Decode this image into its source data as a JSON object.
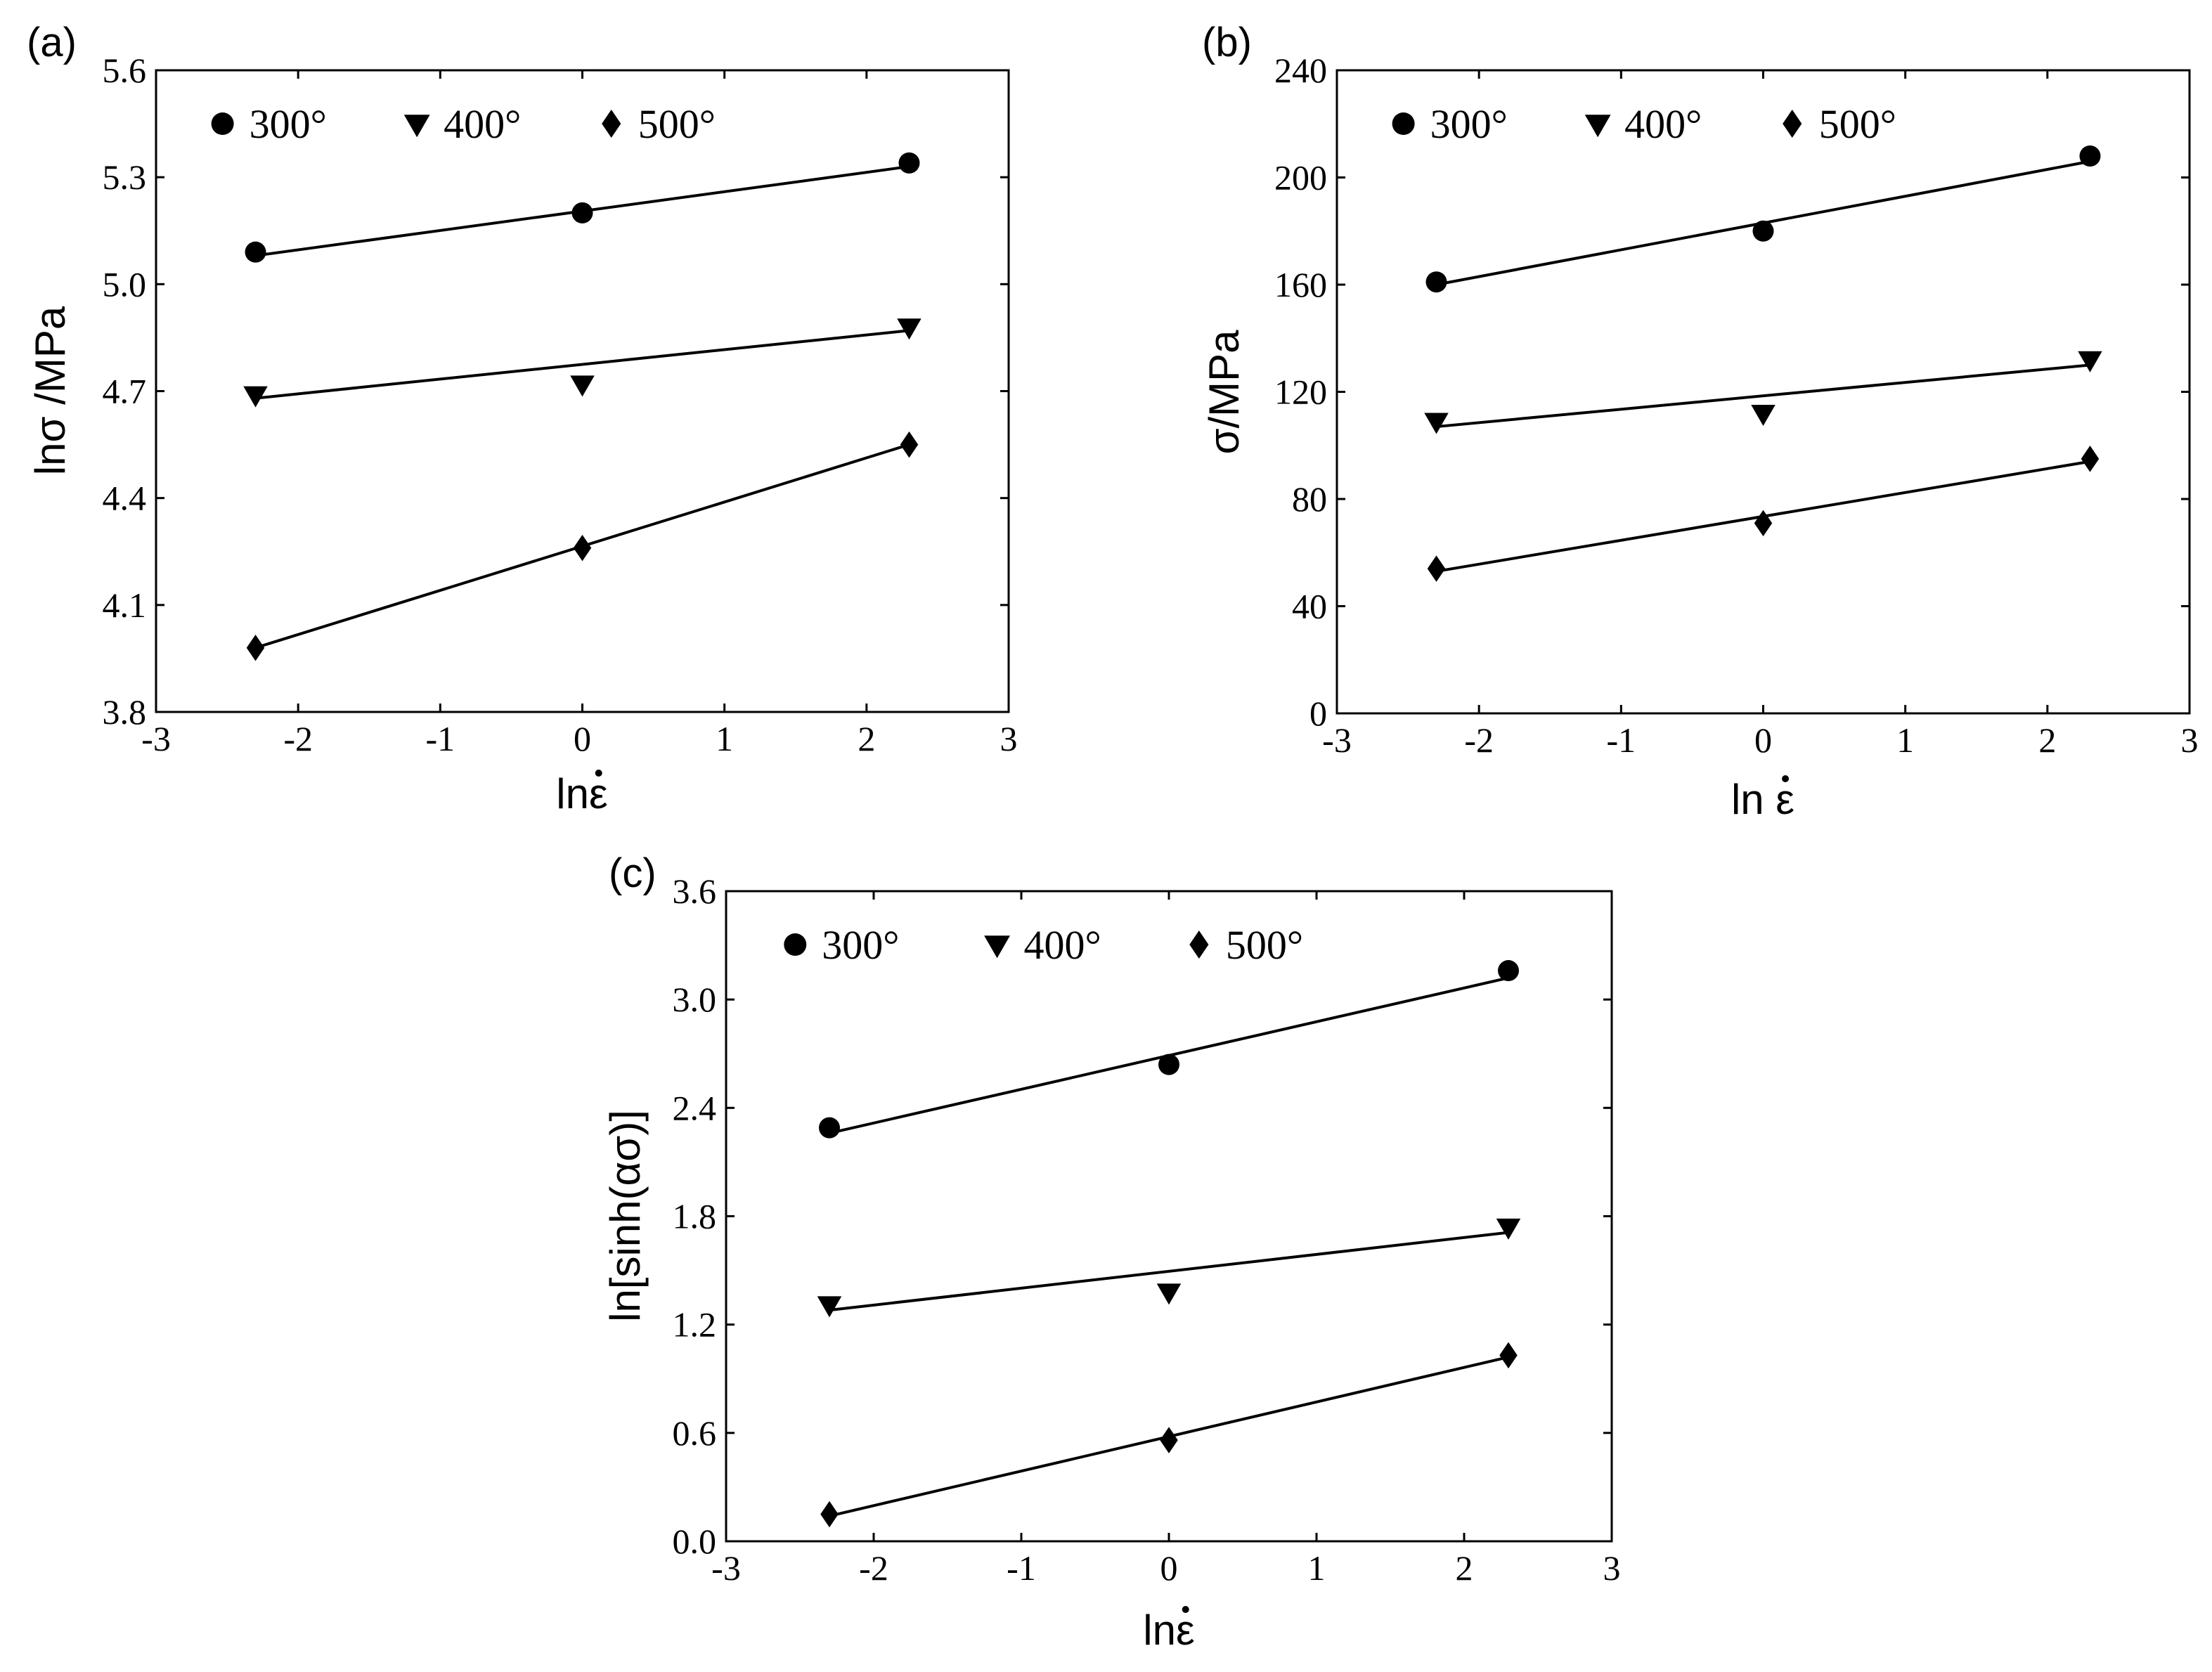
{
  "chart_data": [
    {
      "type": "scatter",
      "panel": "(a)",
      "title": "",
      "xlabel": "lnε",
      "ylabel": "lnσ /MPa",
      "xlim": [
        -3,
        3
      ],
      "ylim": [
        3.8,
        5.6
      ],
      "xticks": [
        -3,
        -2,
        -1,
        0,
        1,
        2,
        3
      ],
      "yticks": [
        3.8,
        4.1,
        4.4,
        4.7,
        5.0,
        5.3,
        5.6
      ],
      "ytick_labels": [
        "3.8",
        "4.1",
        "4.4",
        "4.7",
        "5.0",
        "5.3",
        "5.6"
      ],
      "grid": false,
      "legend": "top",
      "series": [
        {
          "name": "300°",
          "marker": "circle",
          "x": [
            -2.3,
            0,
            2.3
          ],
          "y": [
            5.09,
            5.2,
            5.34
          ],
          "fit": [
            [
              -2.3,
              5.08
            ],
            [
              2.3,
              5.33
            ]
          ]
        },
        {
          "name": "400°",
          "marker": "triangle-down",
          "x": [
            -2.3,
            0,
            2.3
          ],
          "y": [
            4.69,
            4.72,
            4.88
          ],
          "fit": [
            [
              -2.3,
              4.68
            ],
            [
              2.3,
              4.87
            ]
          ]
        },
        {
          "name": "500°",
          "marker": "diamond",
          "x": [
            -2.3,
            0,
            2.3
          ],
          "y": [
            3.98,
            4.26,
            4.55
          ],
          "fit": [
            [
              -2.3,
              3.98
            ],
            [
              2.3,
              4.55
            ]
          ]
        }
      ]
    },
    {
      "type": "scatter",
      "panel": "(b)",
      "title": "",
      "xlabel": "ln ε",
      "ylabel": "σ/MPa",
      "xlim": [
        -3,
        3
      ],
      "ylim": [
        0,
        240
      ],
      "xticks": [
        -3,
        -2,
        -1,
        0,
        1,
        2,
        3
      ],
      "yticks": [
        0,
        40,
        80,
        120,
        160,
        200,
        240
      ],
      "ytick_labels": [
        "0",
        "40",
        "80",
        "120",
        "160",
        "200",
        "240"
      ],
      "grid": false,
      "legend": "top",
      "series": [
        {
          "name": "300°",
          "marker": "circle",
          "x": [
            -2.3,
            0,
            2.3
          ],
          "y": [
            161,
            180,
            208
          ],
          "fit": [
            [
              -2.3,
              160
            ],
            [
              2.3,
              206
            ]
          ]
        },
        {
          "name": "400°",
          "marker": "triangle-down",
          "x": [
            -2.3,
            0,
            2.3
          ],
          "y": [
            109,
            112,
            132
          ],
          "fit": [
            [
              -2.3,
              107
            ],
            [
              2.3,
              130
            ]
          ]
        },
        {
          "name": "500°",
          "marker": "diamond",
          "x": [
            -2.3,
            0,
            2.3
          ],
          "y": [
            54,
            71,
            95
          ],
          "fit": [
            [
              -2.3,
              53
            ],
            [
              2.3,
              94
            ]
          ]
        }
      ]
    },
    {
      "type": "scatter",
      "panel": "(c)",
      "title": "",
      "xlabel": "lnε",
      "ylabel": "ln[sinh(ασ)]",
      "xlim": [
        -3,
        3
      ],
      "ylim": [
        0.0,
        3.6
      ],
      "xticks": [
        -3,
        -2,
        -1,
        0,
        1,
        2,
        3
      ],
      "yticks": [
        0.0,
        0.6,
        1.2,
        1.8,
        2.4,
        3.0,
        3.6
      ],
      "ytick_labels": [
        "0.0",
        "0.6",
        "1.2",
        "1.8",
        "2.4",
        "3.0",
        "3.6"
      ],
      "grid": false,
      "legend": "top",
      "series": [
        {
          "name": "300°",
          "marker": "circle",
          "x": [
            -2.3,
            0,
            2.3
          ],
          "y": [
            2.29,
            2.64,
            3.16
          ],
          "fit": [
            [
              -2.3,
              2.26
            ],
            [
              2.3,
              3.12
            ]
          ]
        },
        {
          "name": "400°",
          "marker": "triangle-down",
          "x": [
            -2.3,
            0,
            2.3
          ],
          "y": [
            1.31,
            1.38,
            1.74
          ],
          "fit": [
            [
              -2.3,
              1.28
            ],
            [
              2.3,
              1.71
            ]
          ]
        },
        {
          "name": "500°",
          "marker": "diamond",
          "x": [
            -2.3,
            0,
            2.3
          ],
          "y": [
            0.15,
            0.56,
            1.03
          ],
          "fit": [
            [
              -2.3,
              0.14
            ],
            [
              2.3,
              1.02
            ]
          ]
        }
      ]
    }
  ]
}
